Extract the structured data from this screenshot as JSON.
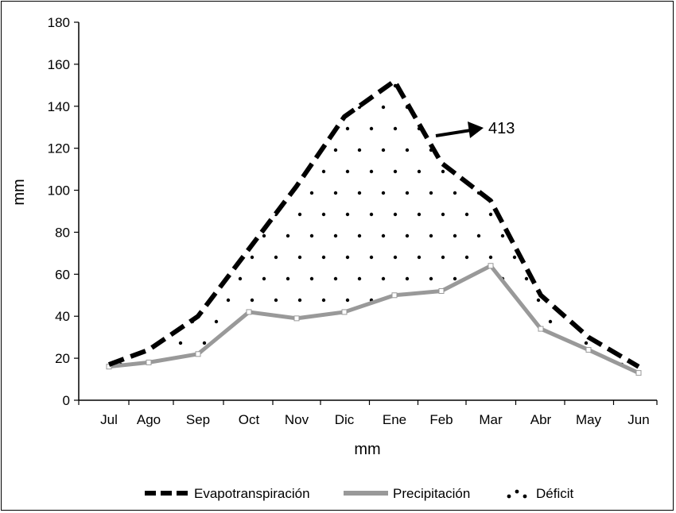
{
  "chart_data": {
    "type": "line",
    "xlabel": "mm",
    "ylabel": "mm",
    "ylim": [
      0,
      180
    ],
    "yticks": [
      0,
      20,
      40,
      60,
      80,
      100,
      120,
      140,
      160,
      180
    ],
    "categories": [
      "Jul",
      "Ago",
      "Sep",
      "Oct",
      "Nov",
      "Dic",
      "Ene",
      "Feb",
      "Mar",
      "Abr",
      "May",
      "Jun"
    ],
    "series": [
      {
        "name": "Evapotranspiración",
        "style": "dashed",
        "color": "#000000",
        "values": [
          17,
          24,
          40,
          72,
          102,
          135,
          152,
          113,
          95,
          50,
          30,
          16
        ]
      },
      {
        "name": "Precipitación",
        "style": "solid",
        "color": "#999999",
        "values": [
          16,
          18,
          22,
          42,
          39,
          42,
          50,
          52,
          64,
          34,
          24,
          13
        ]
      }
    ],
    "area": {
      "name": "Déficit",
      "style": "dotted",
      "between": [
        "Evapotranspiración",
        "Precipitación"
      ]
    },
    "annotations": [
      {
        "text": "413",
        "arrow": true
      }
    ],
    "grid": false,
    "legend": "bottom"
  }
}
